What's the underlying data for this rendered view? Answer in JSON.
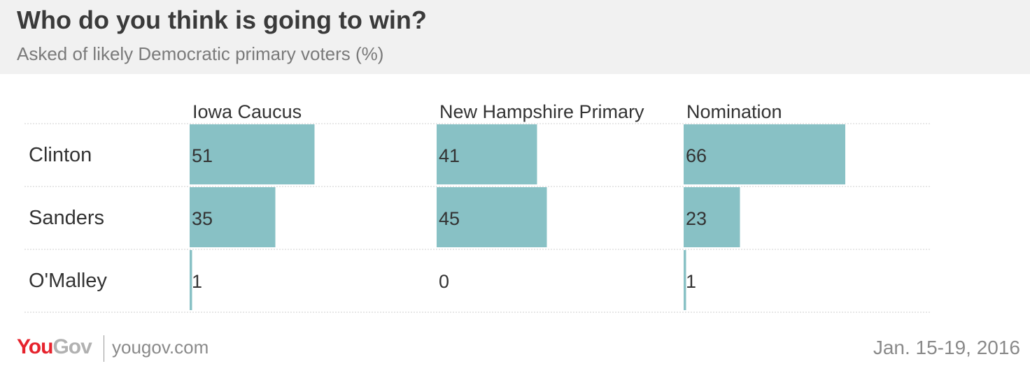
{
  "header": {
    "title": "Who do you think is going to win?",
    "subtitle": "Asked of likely Democratic primary voters (%)"
  },
  "chart_data": {
    "type": "bar",
    "orientation": "horizontal",
    "layout": "small-multiples",
    "title": "Who do you think is going to win?",
    "subtitle": "Asked of likely Democratic primary voters (%)",
    "categories": [
      "Clinton",
      "Sanders",
      "O'Malley"
    ],
    "series": [
      {
        "name": "Iowa Caucus",
        "values": [
          51,
          35,
          1
        ]
      },
      {
        "name": "New Hampshire Primary",
        "values": [
          41,
          45,
          0
        ]
      },
      {
        "name": "Nomination",
        "values": [
          66,
          23,
          1
        ]
      }
    ],
    "xlim": [
      0,
      100
    ],
    "grid": false,
    "bar_color": "#88c1c5",
    "data_labels": true
  },
  "footer": {
    "logo_you": "You",
    "logo_gov": "Gov",
    "url": "yougov.com",
    "date": "Jan. 15-19, 2016"
  },
  "colors": {
    "brand_red": "#e6232d",
    "brand_gray": "#b1b1b1",
    "bar": "#88c1c5"
  }
}
